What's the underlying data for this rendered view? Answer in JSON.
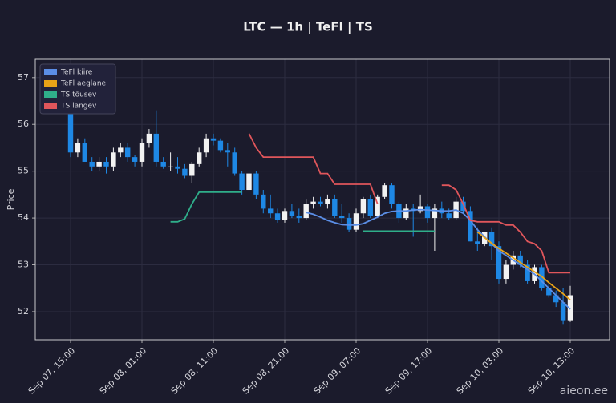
{
  "chart_data": {
    "type": "candlestick",
    "title": "LTC — 1h  |  TeFl  |  TS",
    "y_label": "Price",
    "categories": [
      "Sep 07, 15:00",
      null,
      null,
      null,
      null,
      null,
      null,
      null,
      null,
      null,
      "Sep 08, 01:00",
      null,
      null,
      null,
      null,
      null,
      null,
      null,
      null,
      null,
      "Sep 08, 11:00",
      null,
      null,
      null,
      null,
      null,
      null,
      null,
      null,
      null,
      "Sep 08, 21:00",
      null,
      null,
      null,
      null,
      null,
      null,
      null,
      null,
      null,
      "Sep 09, 07:00",
      null,
      null,
      null,
      null,
      null,
      null,
      null,
      null,
      null,
      "Sep 09, 17:00",
      null,
      null,
      null,
      null,
      null,
      null,
      null,
      null,
      null,
      "Sep 10, 03:00",
      null,
      null,
      null,
      null,
      null,
      null,
      null,
      null,
      null,
      "Sep 10, 13:00"
    ],
    "open": [
      56.5,
      55.4,
      55.6,
      55.2,
      55.1,
      55.2,
      55.1,
      55.4,
      55.5,
      55.3,
      55.2,
      55.6,
      55.8,
      55.2,
      55.1,
      55.1,
      55.05,
      54.9,
      55.15,
      55.4,
      55.7,
      55.65,
      55.45,
      55.4,
      54.95,
      54.6,
      54.95,
      54.5,
      54.2,
      54.1,
      53.95,
      54.15,
      54.05,
      54.0,
      54.3,
      54.35,
      54.3,
      54.4,
      54.05,
      54.0,
      53.75,
      54.1,
      54.4,
      54.05,
      54.45,
      54.7,
      54.3,
      54.0,
      54.2,
      54.15,
      54.25,
      54.0,
      54.2,
      54.1,
      54.0,
      54.35,
      54.15,
      53.5,
      53.45,
      53.7,
      53.4,
      52.7,
      53.0,
      53.2,
      53.0,
      52.65,
      52.95,
      52.5,
      52.35,
      52.2,
      51.8
    ],
    "high": [
      56.7,
      55.7,
      55.7,
      55.3,
      55.3,
      55.3,
      55.5,
      55.6,
      55.6,
      55.35,
      55.7,
      55.9,
      56.3,
      55.3,
      55.4,
      55.3,
      55.15,
      55.2,
      55.5,
      55.8,
      55.8,
      55.7,
      55.6,
      55.5,
      55.0,
      55.0,
      55.0,
      54.6,
      54.5,
      54.2,
      54.2,
      54.3,
      54.2,
      54.4,
      54.45,
      54.45,
      54.5,
      54.5,
      54.3,
      54.1,
      54.2,
      54.45,
      54.5,
      54.5,
      54.75,
      54.75,
      54.35,
      54.3,
      54.3,
      54.5,
      54.3,
      54.3,
      54.35,
      54.2,
      54.45,
      54.45,
      54.25,
      53.8,
      53.7,
      53.8,
      53.5,
      53.1,
      53.3,
      53.3,
      53.1,
      53.0,
      53.0,
      52.6,
      52.45,
      52.5,
      52.55
    ],
    "low": [
      55.3,
      55.3,
      55.2,
      55.0,
      55.0,
      54.95,
      55.0,
      55.3,
      55.2,
      55.1,
      55.1,
      55.5,
      55.1,
      55.05,
      55.0,
      54.95,
      54.85,
      54.75,
      55.1,
      55.3,
      55.55,
      55.4,
      55.1,
      54.9,
      54.5,
      54.5,
      54.4,
      54.1,
      54.0,
      53.9,
      53.9,
      54.0,
      53.9,
      53.95,
      54.2,
      54.25,
      54.2,
      54.0,
      53.9,
      53.7,
      53.7,
      54.0,
      54.0,
      54.0,
      54.4,
      54.2,
      53.9,
      53.95,
      53.6,
      54.1,
      53.9,
      53.3,
      54.0,
      53.95,
      53.95,
      54.1,
      53.5,
      53.3,
      53.4,
      53.1,
      52.6,
      52.6,
      52.9,
      52.95,
      52.6,
      52.6,
      52.45,
      52.3,
      52.1,
      51.72,
      51.78
    ],
    "close": [
      55.4,
      55.6,
      55.2,
      55.1,
      55.2,
      55.1,
      55.4,
      55.5,
      55.3,
      55.2,
      55.6,
      55.8,
      55.2,
      55.1,
      55.1,
      55.05,
      54.9,
      55.15,
      55.4,
      55.7,
      55.65,
      55.45,
      55.4,
      54.95,
      54.6,
      54.95,
      54.5,
      54.2,
      54.1,
      53.95,
      54.15,
      54.05,
      54.0,
      54.3,
      54.35,
      54.3,
      54.4,
      54.05,
      54.0,
      53.75,
      54.1,
      54.4,
      54.05,
      54.45,
      54.7,
      54.3,
      54.0,
      54.2,
      54.15,
      54.25,
      54.0,
      54.2,
      54.1,
      54.0,
      54.35,
      54.15,
      53.5,
      53.45,
      53.7,
      53.4,
      52.7,
      53.0,
      53.2,
      53.0,
      52.65,
      52.95,
      52.5,
      52.35,
      52.2,
      51.8,
      52.35
    ],
    "up_color": "#f2f2f2",
    "down_color": "#1e88e5",
    "series": [
      {
        "name": "TeFl kiire",
        "color": "#5b8ee6",
        "values": [
          null,
          null,
          null,
          null,
          null,
          null,
          null,
          null,
          null,
          null,
          null,
          null,
          null,
          null,
          null,
          null,
          null,
          null,
          null,
          null,
          null,
          null,
          null,
          null,
          null,
          null,
          null,
          null,
          null,
          null,
          null,
          null,
          null,
          54.12,
          54.08,
          54.02,
          53.95,
          53.9,
          53.86,
          53.85,
          53.85,
          53.88,
          53.95,
          54.02,
          54.1,
          54.14,
          54.15,
          54.15,
          54.17,
          54.18,
          54.17,
          54.16,
          54.15,
          54.15,
          54.17,
          54.1,
          53.95,
          53.75,
          53.6,
          53.45,
          53.3,
          53.2,
          53.1,
          53.0,
          52.9,
          52.8,
          52.65,
          52.5,
          52.35,
          52.2,
          52.05
        ]
      },
      {
        "name": "TeFl aeglane",
        "color": "#e8a317",
        "values": [
          null,
          null,
          null,
          null,
          null,
          null,
          null,
          null,
          null,
          null,
          null,
          null,
          null,
          null,
          null,
          null,
          null,
          null,
          null,
          null,
          null,
          null,
          null,
          null,
          null,
          null,
          null,
          null,
          null,
          null,
          null,
          null,
          null,
          null,
          null,
          null,
          null,
          null,
          null,
          null,
          null,
          null,
          null,
          null,
          null,
          null,
          null,
          null,
          null,
          null,
          null,
          null,
          null,
          null,
          null,
          null,
          null,
          53.7,
          53.58,
          53.46,
          53.35,
          53.25,
          53.15,
          53.05,
          52.95,
          52.85,
          52.75,
          52.62,
          52.5,
          52.38,
          52.25
        ]
      },
      {
        "name": "TS tõusev",
        "color": "#2fae8a",
        "values": [
          null,
          null,
          null,
          null,
          null,
          null,
          null,
          null,
          null,
          null,
          null,
          null,
          null,
          null,
          53.92,
          53.92,
          53.98,
          54.3,
          54.55,
          54.55,
          54.55,
          54.55,
          54.55,
          54.55,
          54.55,
          null,
          null,
          null,
          null,
          null,
          null,
          null,
          null,
          null,
          null,
          null,
          null,
          null,
          null,
          null,
          null,
          53.72,
          53.72,
          53.72,
          53.72,
          53.72,
          53.72,
          53.72,
          53.72,
          53.72,
          53.72,
          53.72,
          null,
          null,
          null,
          null,
          null,
          null,
          null,
          null,
          null,
          null,
          null,
          null,
          null,
          null,
          null,
          null,
          null,
          null,
          null
        ]
      },
      {
        "name": "TS langev",
        "color": "#e0565b",
        "values": [
          null,
          null,
          null,
          null,
          null,
          null,
          null,
          null,
          null,
          null,
          null,
          null,
          null,
          null,
          null,
          null,
          null,
          null,
          null,
          null,
          null,
          null,
          null,
          null,
          null,
          55.8,
          55.5,
          55.3,
          55.3,
          55.3,
          55.3,
          55.3,
          55.3,
          55.3,
          55.3,
          54.95,
          54.95,
          54.72,
          54.72,
          54.72,
          54.72,
          54.72,
          54.72,
          54.3,
          null,
          null,
          null,
          null,
          null,
          null,
          null,
          null,
          54.7,
          54.7,
          54.6,
          54.3,
          53.95,
          53.92,
          53.92,
          53.92,
          53.92,
          53.85,
          53.85,
          53.7,
          53.5,
          53.45,
          53.3,
          52.83,
          52.83,
          52.83,
          52.83
        ]
      }
    ],
    "ylim": [
      51.4,
      57.39
    ],
    "yticks": [
      52,
      53,
      54,
      55,
      56,
      57
    ],
    "grid": true,
    "legend": "upper left"
  },
  "watermark": "aieon.ee"
}
